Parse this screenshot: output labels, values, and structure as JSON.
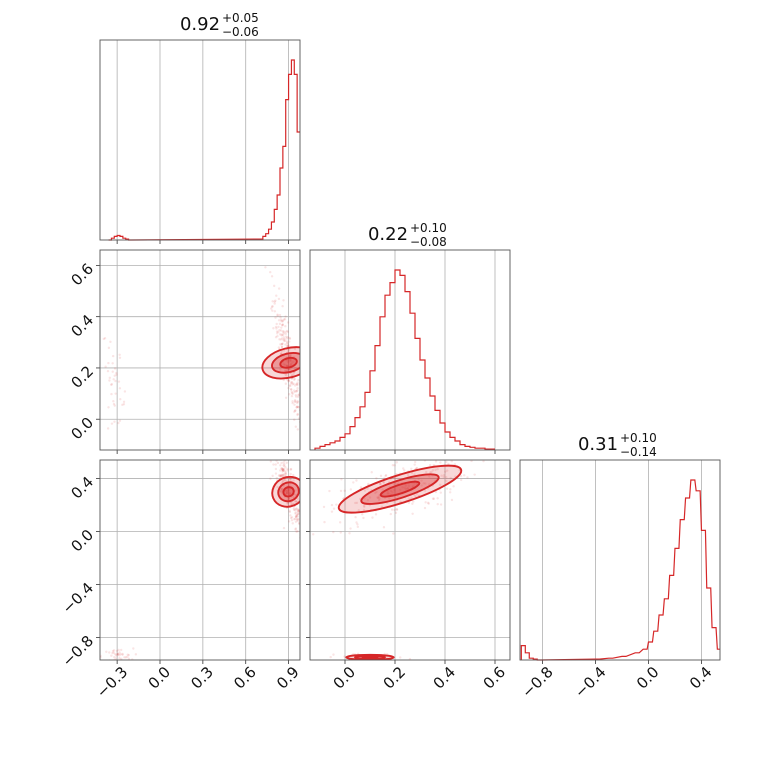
{
  "chart_data": [
    {
      "type": "histogram",
      "panel": "marginal-param-1",
      "title_value": "0.92",
      "title_plus": "+0.05",
      "title_minus": "−0.06",
      "xlim": [
        -0.42,
        0.98
      ],
      "xticks": [
        -0.3,
        0.0,
        0.3,
        0.6,
        0.9
      ],
      "bins": [
        [
          -0.36,
          0.0
        ],
        [
          -0.34,
          0.01
        ],
        [
          -0.32,
          0.02
        ],
        [
          -0.3,
          0.025
        ],
        [
          -0.28,
          0.02
        ],
        [
          -0.26,
          0.01
        ],
        [
          -0.24,
          0.005
        ],
        [
          -0.22,
          0.0
        ],
        [
          0.7,
          0.005
        ],
        [
          0.72,
          0.02
        ],
        [
          0.74,
          0.035
        ],
        [
          0.76,
          0.06
        ],
        [
          0.78,
          0.1
        ],
        [
          0.8,
          0.17
        ],
        [
          0.82,
          0.25
        ],
        [
          0.84,
          0.4
        ],
        [
          0.86,
          0.52
        ],
        [
          0.88,
          0.78
        ],
        [
          0.9,
          0.92
        ],
        [
          0.92,
          1.0
        ],
        [
          0.94,
          0.92
        ],
        [
          0.96,
          0.6
        ]
      ]
    },
    {
      "type": "histogram",
      "panel": "marginal-param-2",
      "title_value": "0.22",
      "title_plus": "+0.10",
      "title_minus": "−0.08",
      "xlim": [
        -0.14,
        0.66
      ],
      "xticks": [
        0.0,
        0.2,
        0.4,
        0.6
      ],
      "bins": [
        [
          -0.12,
          0.01
        ],
        [
          -0.1,
          0.02
        ],
        [
          -0.08,
          0.03
        ],
        [
          -0.06,
          0.04
        ],
        [
          -0.04,
          0.05
        ],
        [
          -0.02,
          0.07
        ],
        [
          0.0,
          0.09
        ],
        [
          0.02,
          0.13
        ],
        [
          0.04,
          0.18
        ],
        [
          0.06,
          0.24
        ],
        [
          0.08,
          0.32
        ],
        [
          0.1,
          0.44
        ],
        [
          0.12,
          0.58
        ],
        [
          0.14,
          0.74
        ],
        [
          0.16,
          0.86
        ],
        [
          0.18,
          0.93
        ],
        [
          0.2,
          1.0
        ],
        [
          0.22,
          0.97
        ],
        [
          0.24,
          0.88
        ],
        [
          0.26,
          0.76
        ],
        [
          0.28,
          0.62
        ],
        [
          0.3,
          0.5
        ],
        [
          0.32,
          0.4
        ],
        [
          0.34,
          0.3
        ],
        [
          0.36,
          0.22
        ],
        [
          0.38,
          0.15
        ],
        [
          0.4,
          0.1
        ],
        [
          0.42,
          0.07
        ],
        [
          0.44,
          0.05
        ],
        [
          0.46,
          0.03
        ],
        [
          0.48,
          0.02
        ],
        [
          0.5,
          0.015
        ],
        [
          0.52,
          0.01
        ],
        [
          0.54,
          0.01
        ],
        [
          0.56,
          0.005
        ],
        [
          0.58,
          0.005
        ]
      ]
    },
    {
      "type": "histogram",
      "panel": "marginal-param-3",
      "title_value": "0.31",
      "title_plus": "+0.10",
      "title_minus": "−0.14",
      "xlim": [
        -0.97,
        0.54
      ],
      "xticks": [
        -0.8,
        -0.4,
        0.0,
        0.4
      ],
      "bins": [
        [
          -0.96,
          0.08
        ],
        [
          -0.93,
          0.04
        ],
        [
          -0.9,
          0.01
        ],
        [
          -0.87,
          0.005
        ],
        [
          -0.84,
          0.0
        ],
        [
          -0.4,
          0.005
        ],
        [
          -0.3,
          0.01
        ],
        [
          -0.2,
          0.02
        ],
        [
          -0.1,
          0.04
        ],
        [
          -0.04,
          0.06
        ],
        [
          0.0,
          0.1
        ],
        [
          0.04,
          0.16
        ],
        [
          0.08,
          0.25
        ],
        [
          0.12,
          0.34
        ],
        [
          0.16,
          0.47
        ],
        [
          0.2,
          0.62
        ],
        [
          0.24,
          0.78
        ],
        [
          0.28,
          0.9
        ],
        [
          0.32,
          1.0
        ],
        [
          0.36,
          0.94
        ],
        [
          0.4,
          0.72
        ],
        [
          0.44,
          0.4
        ],
        [
          0.48,
          0.18
        ],
        [
          0.52,
          0.06
        ]
      ]
    },
    {
      "type": "scatter",
      "panel": "joint-param-1-vs-param-2",
      "xlim": [
        -0.42,
        0.98
      ],
      "ylim": [
        -0.12,
        0.66
      ],
      "xticks": [
        -0.3,
        0.0,
        0.3,
        0.6,
        0.9
      ],
      "yticks": [
        0.0,
        0.2,
        0.4,
        0.6
      ],
      "clusters": [
        {
          "x": 0.9,
          "y": 0.22,
          "sx": 0.04,
          "sy": 0.1,
          "rho": -0.88
        },
        {
          "x": -0.32,
          "y": 0.14,
          "sx": 0.03,
          "sy": 0.06,
          "rho": -0.6
        }
      ]
    },
    {
      "type": "scatter",
      "panel": "joint-param-1-vs-param-3",
      "xlim": [
        -0.42,
        0.98
      ],
      "ylim": [
        -0.97,
        0.54
      ],
      "xticks": [
        -0.3,
        0.0,
        0.3,
        0.6,
        0.9
      ],
      "yticks": [
        -0.8,
        -0.4,
        0.0,
        0.4
      ],
      "xlabels": [
        "−0.3",
        "0.0",
        "0.3",
        "0.6",
        "0.9"
      ],
      "ylabels": [
        "−0.8",
        "−0.4",
        "0.0",
        "0.4"
      ],
      "clusters": [
        {
          "x": 0.9,
          "y": 0.3,
          "sx": 0.04,
          "sy": 0.12,
          "rho": -0.85
        },
        {
          "x": -0.3,
          "y": -0.94,
          "sx": 0.04,
          "sy": 0.02,
          "rho": 0.0
        }
      ]
    },
    {
      "type": "scatter",
      "panel": "joint-param-2-vs-param-3",
      "xlim": [
        -0.14,
        0.66
      ],
      "ylim": [
        -0.97,
        0.54
      ],
      "xticks": [
        0.0,
        0.2,
        0.4,
        0.6
      ],
      "yticks": [
        -0.8,
        -0.4,
        0.0,
        0.4
      ],
      "xlabels": [
        "0.0",
        "0.2",
        "0.4",
        "0.6"
      ],
      "clusters": [
        {
          "x": 0.22,
          "y": 0.32,
          "sx": 0.1,
          "sy": 0.1,
          "rho": 0.6
        },
        {
          "x": 0.1,
          "y": -0.95,
          "sx": 0.05,
          "sy": 0.01,
          "rho": 0.0
        }
      ]
    }
  ],
  "labels": {
    "p1_x": [
      "−0.3",
      "0.0",
      "0.3",
      "0.6",
      "0.9"
    ],
    "p2_y": [
      "0.0",
      "0.2",
      "0.4",
      "0.6"
    ],
    "p3_y": [
      "−0.8",
      "−0.4",
      "0.0",
      "0.4"
    ],
    "p2_x": [
      "0.0",
      "0.2",
      "0.4",
      "0.6"
    ],
    "p3_x": [
      "−0.8",
      "−0.4",
      "0.0",
      "0.4"
    ]
  },
  "colors": {
    "series": "#d62728",
    "grid": "#b0b0b0"
  }
}
